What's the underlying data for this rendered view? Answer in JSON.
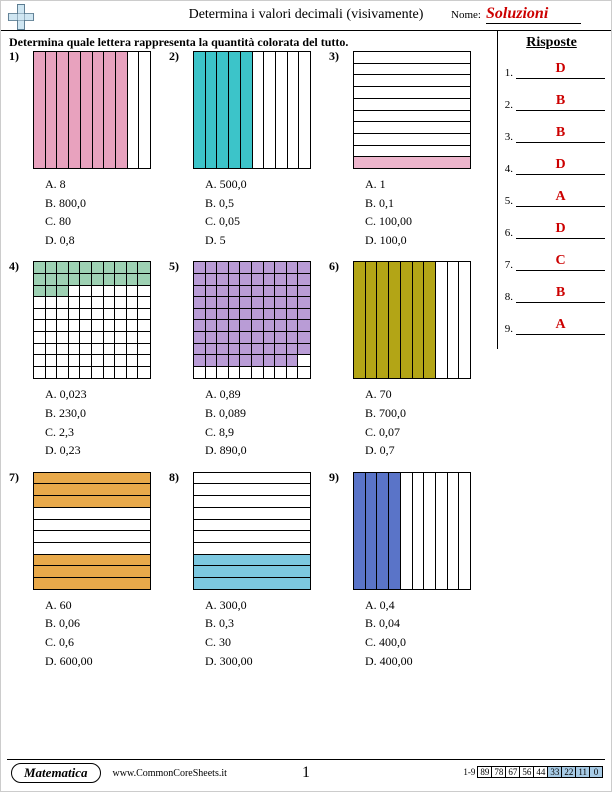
{
  "header": {
    "title": "Determina i valori decimali (visivamente)",
    "name_label": "Nome:",
    "name_value": "Soluzioni",
    "name_color": "#cc0000"
  },
  "instruction": "Determina quale lettera rappresenta la quantità colorata del tutto.",
  "answers_panel": {
    "title": "Risposte",
    "color": "#cc0000",
    "items": [
      {
        "n": "1.",
        "v": "D"
      },
      {
        "n": "2.",
        "v": "B"
      },
      {
        "n": "3.",
        "v": "B"
      },
      {
        "n": "4.",
        "v": "D"
      },
      {
        "n": "5.",
        "v": "A"
      },
      {
        "n": "6.",
        "v": "D"
      },
      {
        "n": "7.",
        "v": "C"
      },
      {
        "n": "8.",
        "v": "B"
      },
      {
        "n": "9.",
        "v": "A"
      }
    ]
  },
  "problems": [
    {
      "n": "1)",
      "type": "tenths",
      "orient": "vert",
      "filled": 8,
      "color": "#e8a2be",
      "choices": [
        "A. 8",
        "B. 800,0",
        "C. 80",
        "D. 0,8"
      ]
    },
    {
      "n": "2)",
      "type": "tenths",
      "orient": "vert",
      "filled": 5,
      "color": "#3cc4c9",
      "choices": [
        "A. 500,0",
        "B. 0,5",
        "C. 0,05",
        "D. 5"
      ]
    },
    {
      "n": "3)",
      "type": "tenths",
      "orient": "horiz",
      "filled": 1,
      "fill_side": "bottom",
      "color": "#edb5cc",
      "choices": [
        "A. 1",
        "B. 0,1",
        "C. 100,00",
        "D. 100,0"
      ]
    },
    {
      "n": "4)",
      "type": "hundredths",
      "filled": 23,
      "color": "#9ed1b3",
      "choices": [
        "A. 0,023",
        "B. 230,0",
        "C. 2,3",
        "D. 0,23"
      ]
    },
    {
      "n": "5)",
      "type": "hundredths",
      "filled": 89,
      "color": "#b99cd6",
      "choices": [
        "A. 0,89",
        "B. 0,089",
        "C. 8,9",
        "D. 890,0"
      ]
    },
    {
      "n": "6)",
      "type": "tenths",
      "orient": "vert",
      "filled": 7,
      "color": "#b3a516",
      "choices": [
        "A. 70",
        "B. 700,0",
        "C. 0,07",
        "D. 0,7"
      ]
    },
    {
      "n": "7)",
      "type": "tenths",
      "orient": "horiz",
      "filled": 6,
      "fill_side": "split",
      "color": "#e8a94a",
      "choices": [
        "A. 60",
        "B. 0,06",
        "C. 0,6",
        "D. 600,00"
      ]
    },
    {
      "n": "8)",
      "type": "tenths",
      "orient": "horiz",
      "filled": 3,
      "fill_side": "bottom",
      "color": "#7cc8e0",
      "choices": [
        "A. 300,0",
        "B. 0,3",
        "C. 30",
        "D. 300,00"
      ]
    },
    {
      "n": "9)",
      "type": "tenths",
      "orient": "vert",
      "filled": 4,
      "color": "#5a74c8",
      "choices": [
        "A. 0,4",
        "B. 0,04",
        "C. 400,0",
        "D. 400,00"
      ]
    }
  ],
  "footer": {
    "subject": "Matematica",
    "site": "www.CommonCoreSheets.it",
    "page": "1",
    "scale_label": "1-9",
    "scale": [
      "89",
      "78",
      "67",
      "56",
      "44",
      "33",
      "22",
      "11",
      "0"
    ],
    "scale_colors": [
      "#fff",
      "#fff",
      "#fff",
      "#fff",
      "#fff",
      "#a7cbe6",
      "#a7cbe6",
      "#a7cbe6",
      "#a7cbe6"
    ]
  }
}
